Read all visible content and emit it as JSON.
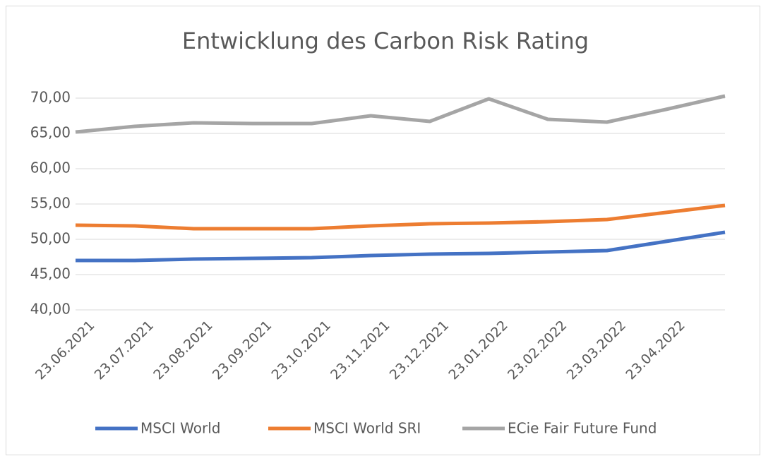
{
  "chart_data": {
    "type": "line",
    "title": "Entwicklung des Carbon Risk Rating",
    "categories": [
      "23.06.2021",
      "23.07.2021",
      "23.08.2021",
      "23.09.2021",
      "23.10.2021",
      "23.11.2021",
      "23.12.2021",
      "23.01.2022",
      "23.02.2022",
      "23.03.2022",
      "23.04.2022",
      null
    ],
    "series": [
      {
        "name": "MSCI World",
        "color": "#4472c4",
        "values": [
          47.0,
          47.0,
          47.2,
          47.3,
          47.4,
          47.7,
          47.9,
          48.0,
          48.2,
          48.4,
          49.7,
          51.0
        ]
      },
      {
        "name": "MSCI World SRI",
        "color": "#ed7d31",
        "values": [
          52.0,
          51.9,
          51.5,
          51.5,
          51.5,
          51.9,
          52.2,
          52.3,
          52.5,
          52.8,
          53.8,
          54.8
        ]
      },
      {
        "name": "ECie Fair Future Fund",
        "color": "#a5a5a5",
        "values": [
          65.2,
          66.0,
          66.5,
          66.4,
          66.4,
          67.5,
          66.7,
          69.9,
          67.0,
          66.6,
          68.4,
          70.3
        ]
      }
    ],
    "ylim": [
      40,
      70
    ],
    "yticks": [
      {
        "value": 40,
        "label": "40,00"
      },
      {
        "value": 45,
        "label": "45,00"
      },
      {
        "value": 50,
        "label": "50,00"
      },
      {
        "value": 55,
        "label": "55,00"
      },
      {
        "value": 60,
        "label": "60,00"
      },
      {
        "value": 65,
        "label": "65,00"
      },
      {
        "value": 70,
        "label": "70,00"
      }
    ],
    "grid": true,
    "legend": "bottom"
  }
}
